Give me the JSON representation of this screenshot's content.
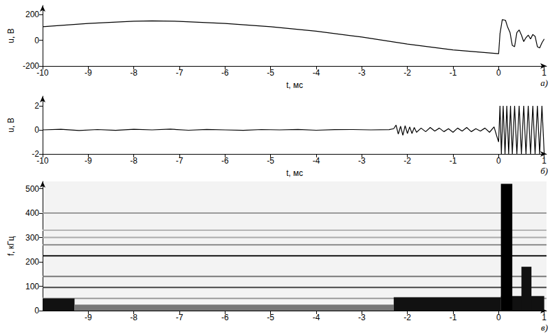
{
  "chart_data": [
    {
      "type": "line",
      "xlabel": "t, мс",
      "ylabel": "u, В",
      "annotations": [
        "а)"
      ],
      "xlim": [
        -10,
        1.05
      ],
      "ylim": [
        -200,
        270
      ],
      "xticks": [
        -10,
        -9,
        -8,
        -7,
        -6,
        -5,
        -4,
        -3,
        -2,
        -1,
        0,
        1
      ],
      "yticks": [
        -200,
        0,
        200
      ],
      "grid": false,
      "color": "#000000",
      "x": [
        -10,
        -9,
        -8,
        -7.6,
        -7,
        -6,
        -5,
        -4,
        -3,
        -2,
        -1,
        -0.5,
        0,
        0.03,
        0.08,
        0.15,
        0.2,
        0.25,
        0.3,
        0.35,
        0.4,
        0.45,
        0.5,
        0.55,
        0.6,
        0.65,
        0.7,
        0.75,
        0.8,
        0.85,
        0.9,
        0.95,
        1
      ],
      "values": [
        105,
        130,
        148,
        150,
        147,
        130,
        105,
        70,
        25,
        -30,
        -75,
        -90,
        -105,
        50,
        160,
        155,
        100,
        60,
        -40,
        -50,
        60,
        80,
        40,
        -10,
        20,
        40,
        10,
        45,
        30,
        -50,
        -60,
        -20,
        10
      ]
    },
    {
      "type": "line",
      "xlabel": "t, мс",
      "ylabel": "u, В",
      "annotations": [
        "б)"
      ],
      "xlim": [
        -10,
        1.05
      ],
      "ylim": [
        -2,
        2.8
      ],
      "xticks": [
        -10,
        -9,
        -8,
        -7,
        -6,
        -5,
        -4,
        -3,
        -2,
        -1,
        0,
        1
      ],
      "yticks": [
        -2,
        0,
        2
      ],
      "grid": false,
      "color": "#000000",
      "x": [
        -10,
        -9.6,
        -9.2,
        -8.8,
        -8.4,
        -8,
        -7.6,
        -7.2,
        -6.8,
        -6.4,
        -6,
        -5.6,
        -5.2,
        -4.8,
        -4.4,
        -4,
        -3.6,
        -3.2,
        -2.8,
        -2.4,
        -2.3,
        -2.25,
        -2.2,
        -2.15,
        -2.1,
        -2.05,
        -2,
        -1.95,
        -1.9,
        -1.85,
        -1.8,
        -1.7,
        -1.6,
        -1.5,
        -1.4,
        -1.3,
        -1.2,
        -1.1,
        -1,
        -0.9,
        -0.8,
        -0.7,
        -0.6,
        -0.5,
        -0.4,
        -0.3,
        -0.2,
        -0.1,
        -0.05,
        0,
        0.03,
        0.06,
        0.1,
        0.14,
        0.18,
        0.22,
        0.26,
        0.3,
        0.35,
        0.4,
        0.45,
        0.5,
        0.55,
        0.6,
        0.65,
        0.7,
        0.75,
        0.8,
        0.85,
        0.9,
        0.95,
        1
      ],
      "values": [
        0,
        0.05,
        -0.05,
        0.03,
        -0.04,
        0.05,
        0,
        0.06,
        -0.03,
        0.04,
        0,
        -0.04,
        0.03,
        0,
        0.04,
        -0.03,
        0.02,
        0.03,
        0,
        0.02,
        0.1,
        0.4,
        -0.35,
        0.3,
        -0.45,
        0.35,
        -0.3,
        0.25,
        -0.3,
        0.2,
        -0.2,
        0.15,
        -0.15,
        0.2,
        -0.1,
        0.15,
        -0.15,
        0.1,
        -0.2,
        0.15,
        -0.1,
        0.2,
        -0.15,
        0.1,
        -0.1,
        0.15,
        -0.2,
        0.25,
        -0.4,
        -1,
        2,
        -2,
        2,
        -2,
        2,
        -2,
        2,
        -2,
        2,
        -2,
        2,
        -2,
        2,
        -2,
        2,
        -2,
        2,
        -2,
        2,
        -2,
        2,
        -2
      ]
    },
    {
      "type": "spectrogram",
      "ylabel": "f, кГц",
      "annotations": [
        "в)"
      ],
      "xlim": [
        -10,
        1.05
      ],
      "ylim": [
        0,
        530
      ],
      "xticks": [
        -9,
        -8,
        -7,
        -6,
        -5,
        -4,
        -3,
        -2,
        -1,
        0,
        1
      ],
      "yticks": [
        0,
        100,
        200,
        300,
        400,
        500
      ],
      "grid": false,
      "lines": [
        {
          "f": 50,
          "color": "#9a9a9a"
        },
        {
          "f": 95,
          "color": "#444444"
        },
        {
          "f": 140,
          "color": "#777777"
        },
        {
          "f": 225,
          "color": "#111111"
        },
        {
          "f": 270,
          "color": "#888888"
        },
        {
          "f": 300,
          "color": "#aaaaaa"
        },
        {
          "f": 330,
          "color": "#b5b5b5"
        },
        {
          "f": 400,
          "color": "#999999"
        }
      ],
      "regions": [
        {
          "t": [
            -10,
            -9.3
          ],
          "f": [
            0,
            50
          ],
          "color": "#111111"
        },
        {
          "t": [
            -9.3,
            -2.3
          ],
          "f": [
            0,
            25
          ],
          "color": "#777777"
        },
        {
          "t": [
            -2.3,
            0.05
          ],
          "f": [
            0,
            55
          ],
          "color": "#111111"
        },
        {
          "t": [
            0.05,
            1
          ],
          "f": [
            0,
            60
          ],
          "color": "#111111"
        },
        {
          "t": [
            0.05,
            0.3
          ],
          "f": [
            0,
            520
          ],
          "color": "#000000"
        },
        {
          "t": [
            0.5,
            0.72
          ],
          "f": [
            0,
            180
          ],
          "color": "#111111"
        }
      ]
    }
  ]
}
